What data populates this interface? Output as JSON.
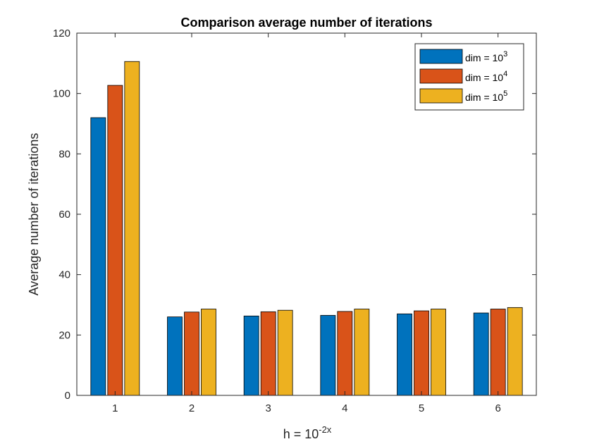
{
  "chart_data": {
    "type": "bar",
    "title": "Comparison average number of iterations",
    "xlabel": {
      "base": "h = 10",
      "sup": "-2x"
    },
    "ylabel": "Average number of iterations",
    "categories": [
      "1",
      "2",
      "3",
      "4",
      "5",
      "6"
    ],
    "ylim": [
      0,
      120
    ],
    "yticks": [
      "0",
      "20",
      "40",
      "60",
      "80",
      "100",
      "120"
    ],
    "grid": false,
    "legend_position": "top-right",
    "series": [
      {
        "name": "dim = 10",
        "sup": "3",
        "color": "#0072BD",
        "values": [
          92,
          26,
          26.3,
          26.5,
          27,
          27.3
        ]
      },
      {
        "name": "dim = 10",
        "sup": "4",
        "color": "#D95319",
        "values": [
          102.7,
          27.6,
          27.7,
          27.8,
          28,
          28.6
        ]
      },
      {
        "name": "dim = 10",
        "sup": "5",
        "color": "#EDB120",
        "values": [
          110.6,
          28.6,
          28.2,
          28.6,
          28.6,
          29.1
        ]
      }
    ]
  }
}
